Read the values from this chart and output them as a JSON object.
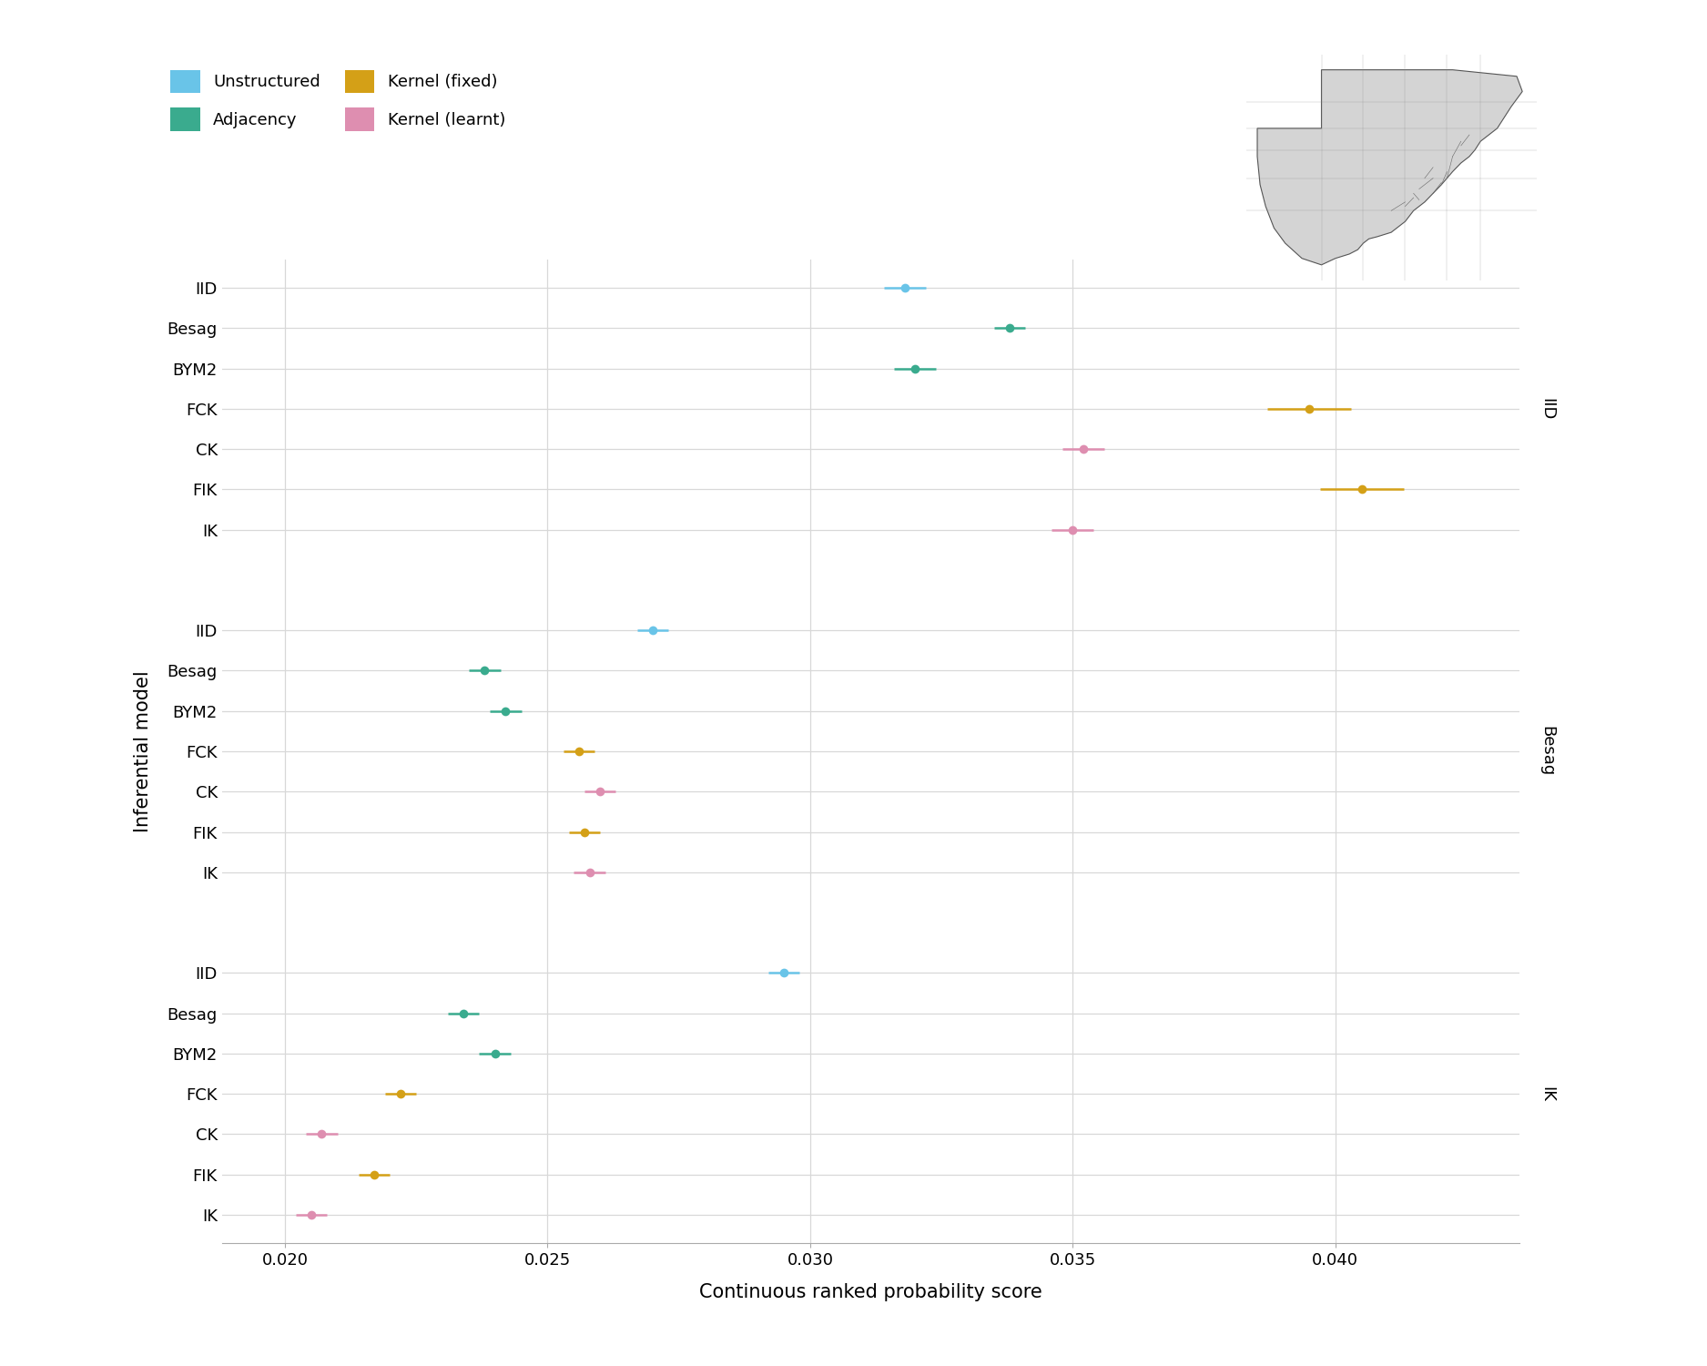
{
  "title": "",
  "xlabel": "Continuous ranked probability score",
  "ylabel": "Inferential model",
  "xlim": [
    0.0188,
    0.0435
  ],
  "xticks": [
    0.02,
    0.025,
    0.03,
    0.035,
    0.04
  ],
  "legend": {
    "Unstructured": "#69c4e8",
    "Adjacency": "#3aab8e",
    "Kernel (fixed)": "#d4a017",
    "Kernel (learnt)": "#de8eb0"
  },
  "sim_models": [
    "IID",
    "Besag",
    "IK"
  ],
  "infer_models": [
    "IID",
    "Besag",
    "BYM2",
    "FCK",
    "CK",
    "FIK",
    "IK"
  ],
  "data": {
    "IID": {
      "IID": {
        "mean": 0.0318,
        "se": 0.0004
      },
      "Besag": {
        "mean": 0.0338,
        "se": 0.0003
      },
      "BYM2": {
        "mean": 0.032,
        "se": 0.0004
      },
      "FCK": {
        "mean": 0.0395,
        "se": 0.0008
      },
      "CK": {
        "mean": 0.0352,
        "se": 0.0004
      },
      "FIK": {
        "mean": 0.0405,
        "se": 0.0008
      },
      "IK": {
        "mean": 0.035,
        "se": 0.0004
      }
    },
    "Besag": {
      "IID": {
        "mean": 0.027,
        "se": 0.0003
      },
      "Besag": {
        "mean": 0.0238,
        "se": 0.0003
      },
      "BYM2": {
        "mean": 0.0242,
        "se": 0.0003
      },
      "FCK": {
        "mean": 0.0256,
        "se": 0.0003
      },
      "CK": {
        "mean": 0.026,
        "se": 0.0003
      },
      "FIK": {
        "mean": 0.0257,
        "se": 0.0003
      },
      "IK": {
        "mean": 0.0258,
        "se": 0.0003
      }
    },
    "IK": {
      "IID": {
        "mean": 0.0295,
        "se": 0.0003
      },
      "Besag": {
        "mean": 0.0234,
        "se": 0.0003
      },
      "BYM2": {
        "mean": 0.024,
        "se": 0.0003
      },
      "FCK": {
        "mean": 0.0222,
        "se": 0.0003
      },
      "CK": {
        "mean": 0.0207,
        "se": 0.0003
      },
      "FIK": {
        "mean": 0.0217,
        "se": 0.0003
      },
      "IK": {
        "mean": 0.0205,
        "se": 0.0003
      }
    }
  },
  "infer_colors": {
    "IID": "#69c4e8",
    "Besag": "#3aab8e",
    "BYM2": "#3aab8e",
    "FCK": "#d4a017",
    "CK": "#de8eb0",
    "FIK": "#d4a017",
    "IK": "#de8eb0"
  },
  "background_color": "#ffffff",
  "grid_color": "#d8d8d8"
}
